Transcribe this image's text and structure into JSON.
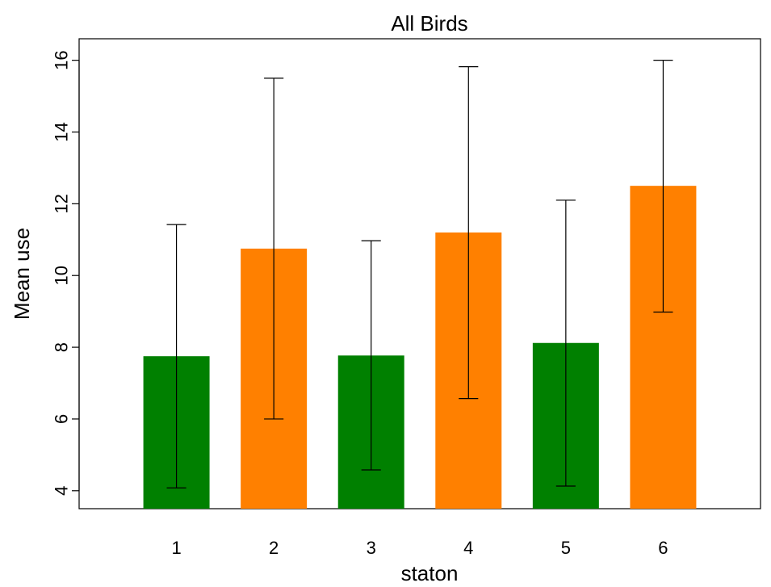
{
  "chart_data": {
    "type": "bar",
    "title": "All Birds",
    "xlabel": "staton",
    "ylabel": "Mean use",
    "categories": [
      "1",
      "2",
      "3",
      "4",
      "5",
      "6"
    ],
    "values": [
      7.75,
      10.75,
      7.77,
      11.2,
      8.12,
      12.5
    ],
    "error_low": [
      4.08,
      6.0,
      4.58,
      6.57,
      4.13,
      8.98
    ],
    "error_high": [
      11.42,
      15.5,
      10.97,
      15.82,
      12.1,
      16.0
    ],
    "bar_colors": [
      "#008000",
      "#ff8000",
      "#008000",
      "#ff8000",
      "#008000",
      "#ff8000"
    ],
    "ylim": [
      3.5,
      16.6
    ],
    "yticks": [
      4,
      6,
      8,
      10,
      12,
      14,
      16
    ],
    "xlim": [
      0.0,
      7.0
    ],
    "grid": false,
    "legend": "none"
  }
}
